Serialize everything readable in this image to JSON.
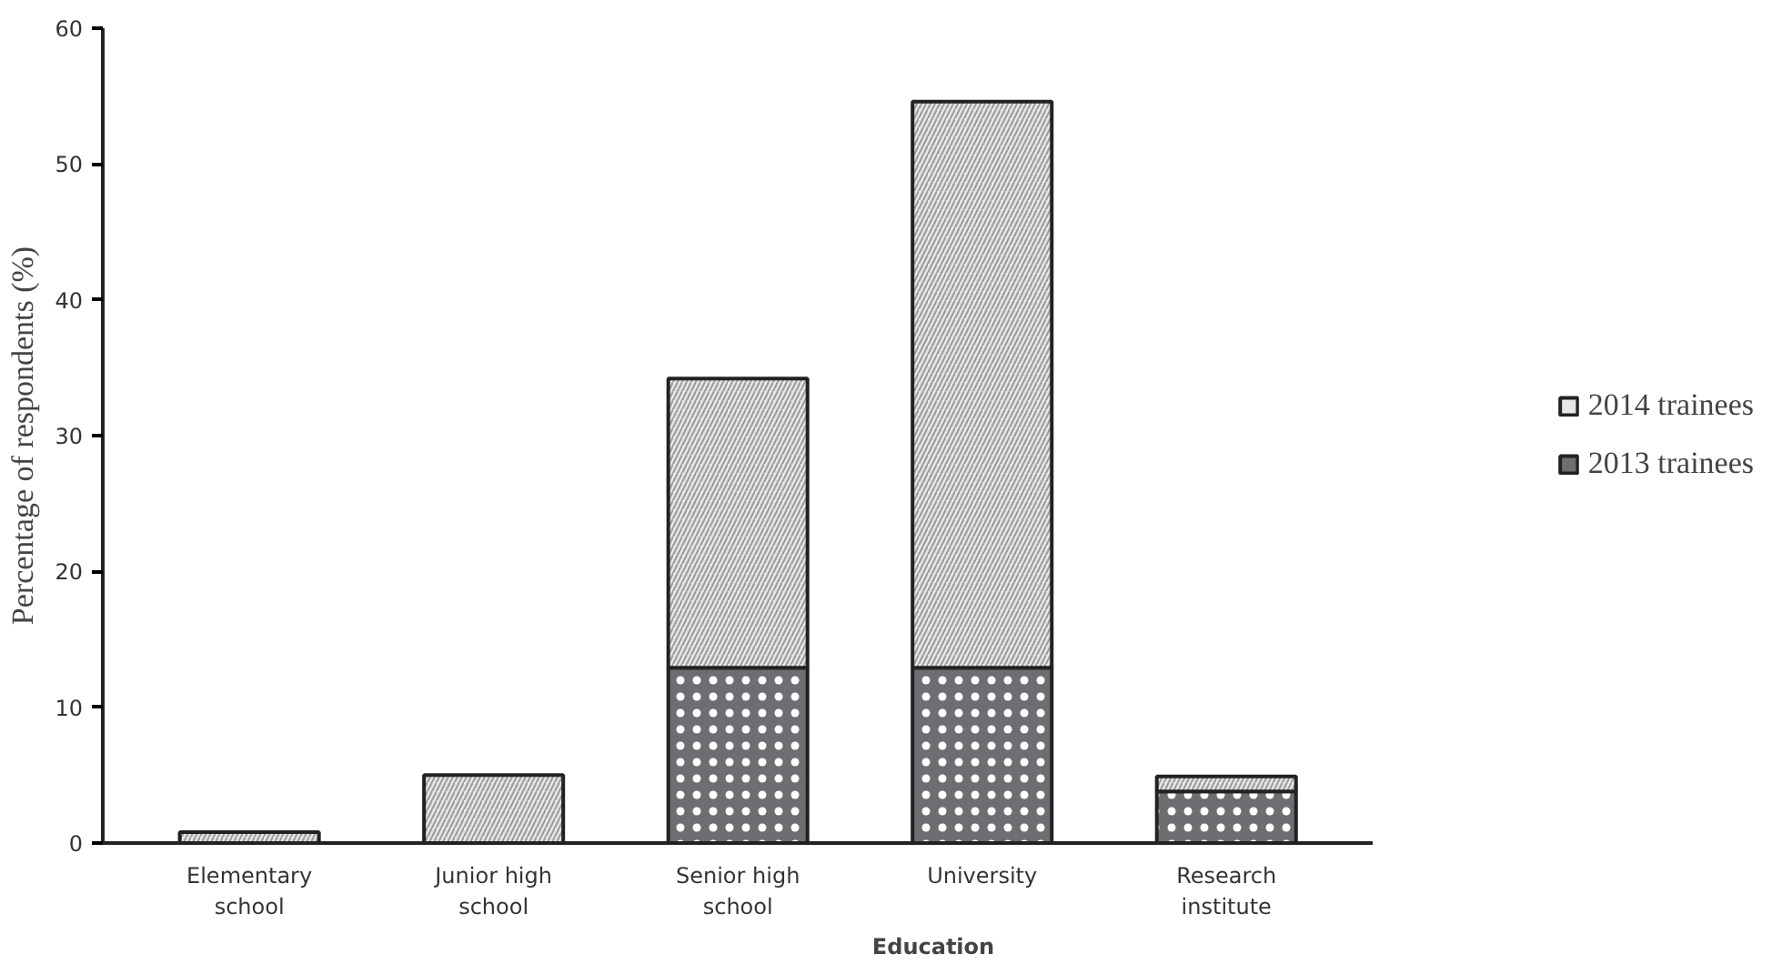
{
  "chart_data": {
    "type": "bar",
    "stacked": true,
    "xlabel": "Education",
    "ylabel": "Percentage of respondents (%)",
    "categories": [
      "Elementary school",
      "Junior high school",
      "Senior high school",
      "University",
      "Research institute"
    ],
    "series": [
      {
        "name": "2013 trainees",
        "color": "#6d6e71",
        "values": [
          0,
          0,
          12.9,
          12.9,
          3.8
        ]
      },
      {
        "name": "2014 trainees",
        "color": "#e6e6e6",
        "values": [
          0.8,
          5.0,
          21.3,
          41.7,
          1.1
        ]
      }
    ],
    "ylim": [
      0,
      60
    ],
    "yticks": [
      0,
      10,
      20,
      30,
      40,
      50,
      60
    ],
    "grid": false,
    "legend": "right"
  }
}
